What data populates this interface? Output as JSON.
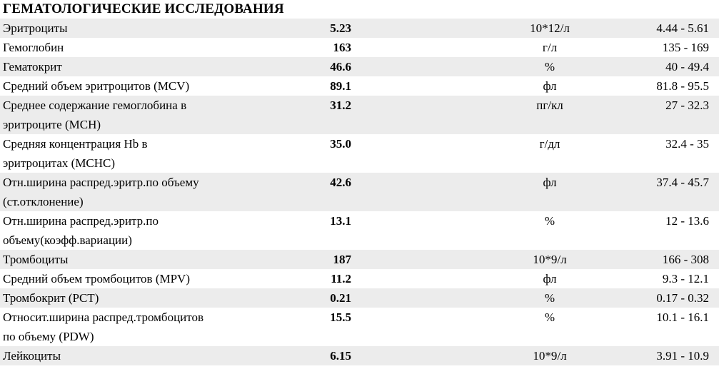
{
  "section_title": "ГЕМАТОЛОГИЧЕСКИЕ ИССЛЕДОВАНИЯ",
  "colors": {
    "row_shade": "#ececec",
    "background": "#ffffff",
    "text": "#000000"
  },
  "rows": [
    {
      "name_lines": [
        "Эритроциты"
      ],
      "value": "5.23",
      "unit": "10*12/л",
      "range": "4.44 - 5.61"
    },
    {
      "name_lines": [
        "Гемоглобин"
      ],
      "value": "163",
      "unit": "г/л",
      "range": "135 - 169"
    },
    {
      "name_lines": [
        "Гематокрит"
      ],
      "value": "46.6",
      "unit": "%",
      "range": "40 - 49.4"
    },
    {
      "name_lines": [
        "Средний объем эритроцитов (MCV)"
      ],
      "value": "89.1",
      "unit": "фл",
      "range": "81.8 - 95.5"
    },
    {
      "name_lines": [
        "Среднее содержание гемоглобина в",
        "эритроците (MCH)"
      ],
      "value": "31.2",
      "unit": "пг/кл",
      "range": "27 - 32.3"
    },
    {
      "name_lines": [
        "Средняя концентрация Hb в",
        "эритроцитах (MCHC)"
      ],
      "value": "35.0",
      "unit": "г/дл",
      "range": "32.4 - 35"
    },
    {
      "name_lines": [
        "Отн.ширина распред.эритр.по объему",
        "(ст.отклонение)"
      ],
      "value": "42.6",
      "unit": "фл",
      "range": "37.4 - 45.7"
    },
    {
      "name_lines": [
        "Отн.ширина распред.эритр.по",
        "объему(коэфф.вариации)"
      ],
      "value": "13.1",
      "unit": "%",
      "range": "12 - 13.6"
    },
    {
      "name_lines": [
        "Тромбоциты"
      ],
      "value": "187",
      "unit": "10*9/л",
      "range": "166 - 308"
    },
    {
      "name_lines": [
        "Средний объем тромбоцитов (MPV)"
      ],
      "value": "11.2",
      "unit": "фл",
      "range": "9.3 - 12.1"
    },
    {
      "name_lines": [
        "Тромбокрит (PCT)"
      ],
      "value": "0.21",
      "unit": "%",
      "range": "0.17 - 0.32"
    },
    {
      "name_lines": [
        "Относит.ширина распред.тромбоцитов",
        "по объему (PDW)"
      ],
      "value": "15.5",
      "unit": "%",
      "range": "10.1 - 16.1"
    },
    {
      "name_lines": [
        "Лейкоциты"
      ],
      "value": "6.15",
      "unit": "10*9/л",
      "range": "3.91 - 10.9"
    }
  ]
}
